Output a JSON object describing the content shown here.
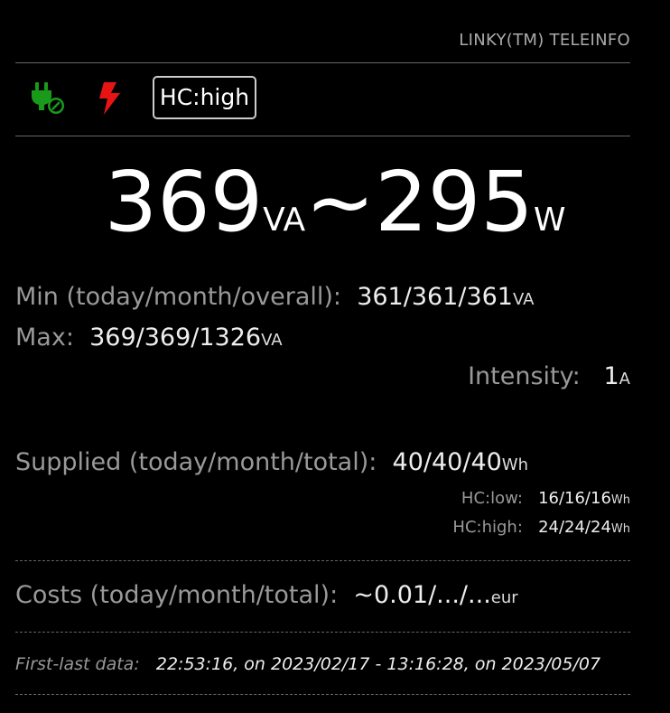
{
  "header": {
    "title": "LINKY(TM) TELEINFO"
  },
  "status": {
    "icons": [
      "plug-ok-icon",
      "lightning-icon"
    ],
    "icon_colors": {
      "plug": "#1a9a1a",
      "lightning": "#e81414"
    },
    "tariff_tag": "HC:high"
  },
  "power": {
    "apparent_value": "369",
    "apparent_unit": "VA",
    "separator": "~",
    "active_value": "295",
    "active_unit": "W"
  },
  "min": {
    "label": "Min (today/month/overall):",
    "value": "361/361/361",
    "unit": "VA"
  },
  "max": {
    "label": "Max:",
    "value": "369/369/1326",
    "unit": "VA"
  },
  "intensity": {
    "label": "Intensity:",
    "value": "1",
    "unit": "A"
  },
  "supplied": {
    "label": "Supplied (today/month/total):",
    "value": "40/40/40",
    "unit": "Wh",
    "hc_low_label": "HC:low:",
    "hc_low_value": "16/16/16",
    "hc_low_unit": "Wh",
    "hc_high_label": "HC:high:",
    "hc_high_value": "24/24/24",
    "hc_high_unit": "Wh"
  },
  "costs": {
    "label": "Costs (today/month/total):",
    "value": "~0.01/.../...",
    "unit": "eur"
  },
  "footer": {
    "label": "First-last data:",
    "value": "22:53:16, on 2023/02/17 - 13:16:28, on 2023/05/07"
  }
}
